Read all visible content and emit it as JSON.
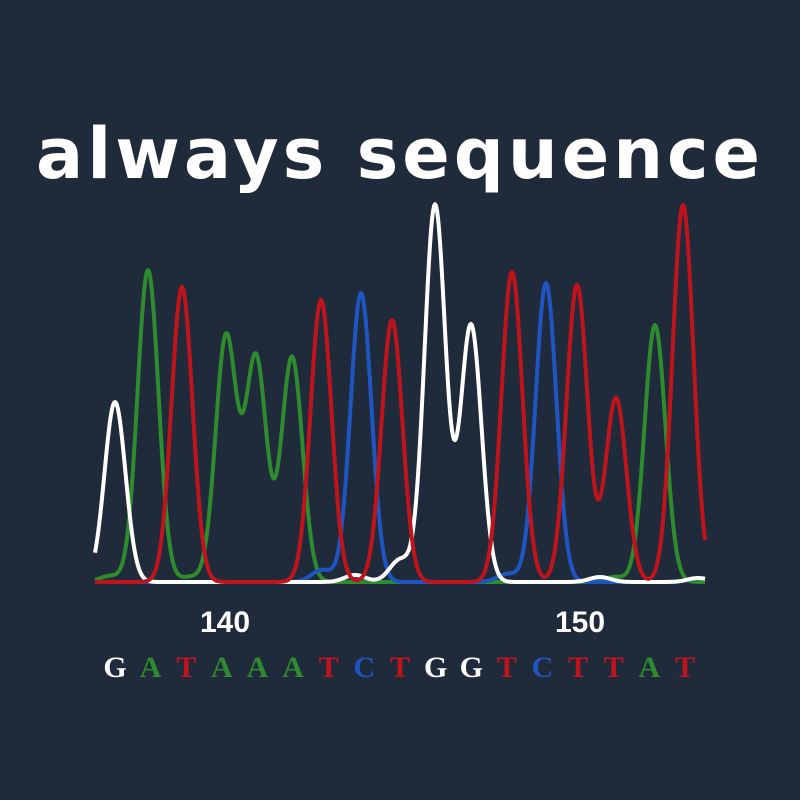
{
  "title": "always sequence",
  "positions": [
    "140",
    "150"
  ],
  "bases": [
    {
      "letter": "G",
      "color": "#ffffff"
    },
    {
      "letter": "A",
      "color": "#2e8b2e"
    },
    {
      "letter": "T",
      "color": "#c0141c"
    },
    {
      "letter": "A",
      "color": "#2e8b2e"
    },
    {
      "letter": "A",
      "color": "#2e8b2e"
    },
    {
      "letter": "A",
      "color": "#2e8b2e"
    },
    {
      "letter": "T",
      "color": "#c0141c"
    },
    {
      "letter": "C",
      "color": "#1f55c0"
    },
    {
      "letter": "T",
      "color": "#c0141c"
    },
    {
      "letter": "G",
      "color": "#ffffff"
    },
    {
      "letter": "G",
      "color": "#ffffff"
    },
    {
      "letter": "T",
      "color": "#c0141c"
    },
    {
      "letter": "C",
      "color": "#1f55c0"
    },
    {
      "letter": "T",
      "color": "#c0141c"
    },
    {
      "letter": "T",
      "color": "#c0141c"
    },
    {
      "letter": "A",
      "color": "#2e8b2e"
    },
    {
      "letter": "T",
      "color": "#c0141c"
    }
  ]
}
